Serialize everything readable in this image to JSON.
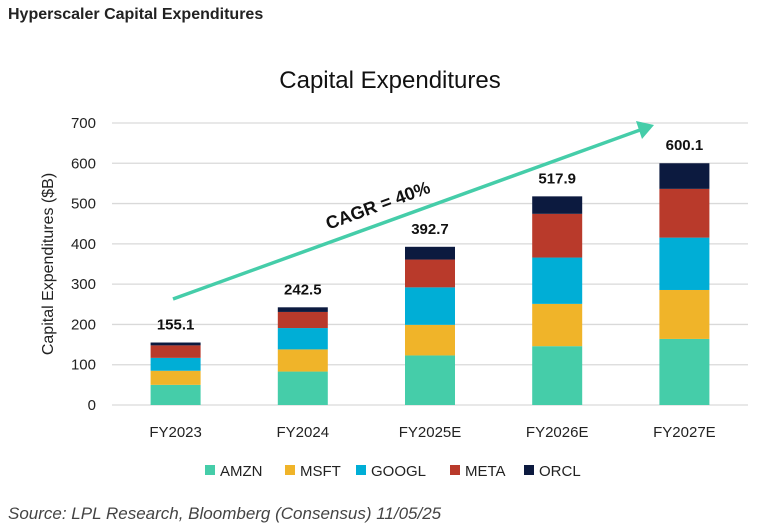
{
  "header": "Hyperscaler Capital Expenditures",
  "source": "Source: LPL Research, Bloomberg (Consensus) 11/05/25",
  "chart_data": {
    "type": "bar",
    "stacked": true,
    "title": "Capital Expenditures",
    "xlabel": "",
    "ylabel": "Capital Expenditures ($B)",
    "ylim": [
      0,
      700
    ],
    "yticks": [
      0,
      100,
      200,
      300,
      400,
      500,
      600,
      700
    ],
    "grid": true,
    "legend": "bottom",
    "categories": [
      "FY2023",
      "FY2024",
      "FY2025E",
      "FY2026E",
      "FY2027E"
    ],
    "totals": [
      "155.1",
      "242.5",
      "392.7",
      "517.9",
      "600.1"
    ],
    "series": [
      {
        "name": "AMZN",
        "color": "#45CDA9",
        "values": [
          50,
          83,
          123,
          146,
          164
        ]
      },
      {
        "name": "MSFT",
        "color": "#F0B429",
        "values": [
          35,
          55,
          76,
          105,
          121.5
        ]
      },
      {
        "name": "GOOGL",
        "color": "#00AED6",
        "values": [
          32,
          53,
          93,
          115,
          130
        ]
      },
      {
        "name": "META",
        "color": "#B93A2B",
        "values": [
          31,
          40,
          69,
          108.5,
          121
        ]
      },
      {
        "name": "ORCL",
        "color": "#0C1A3F",
        "values": [
          7.1,
          11.5,
          31.7,
          43.4,
          63.6
        ]
      }
    ],
    "annotation": {
      "text": "CAGR = 40%",
      "color": "#45CDA9"
    }
  }
}
